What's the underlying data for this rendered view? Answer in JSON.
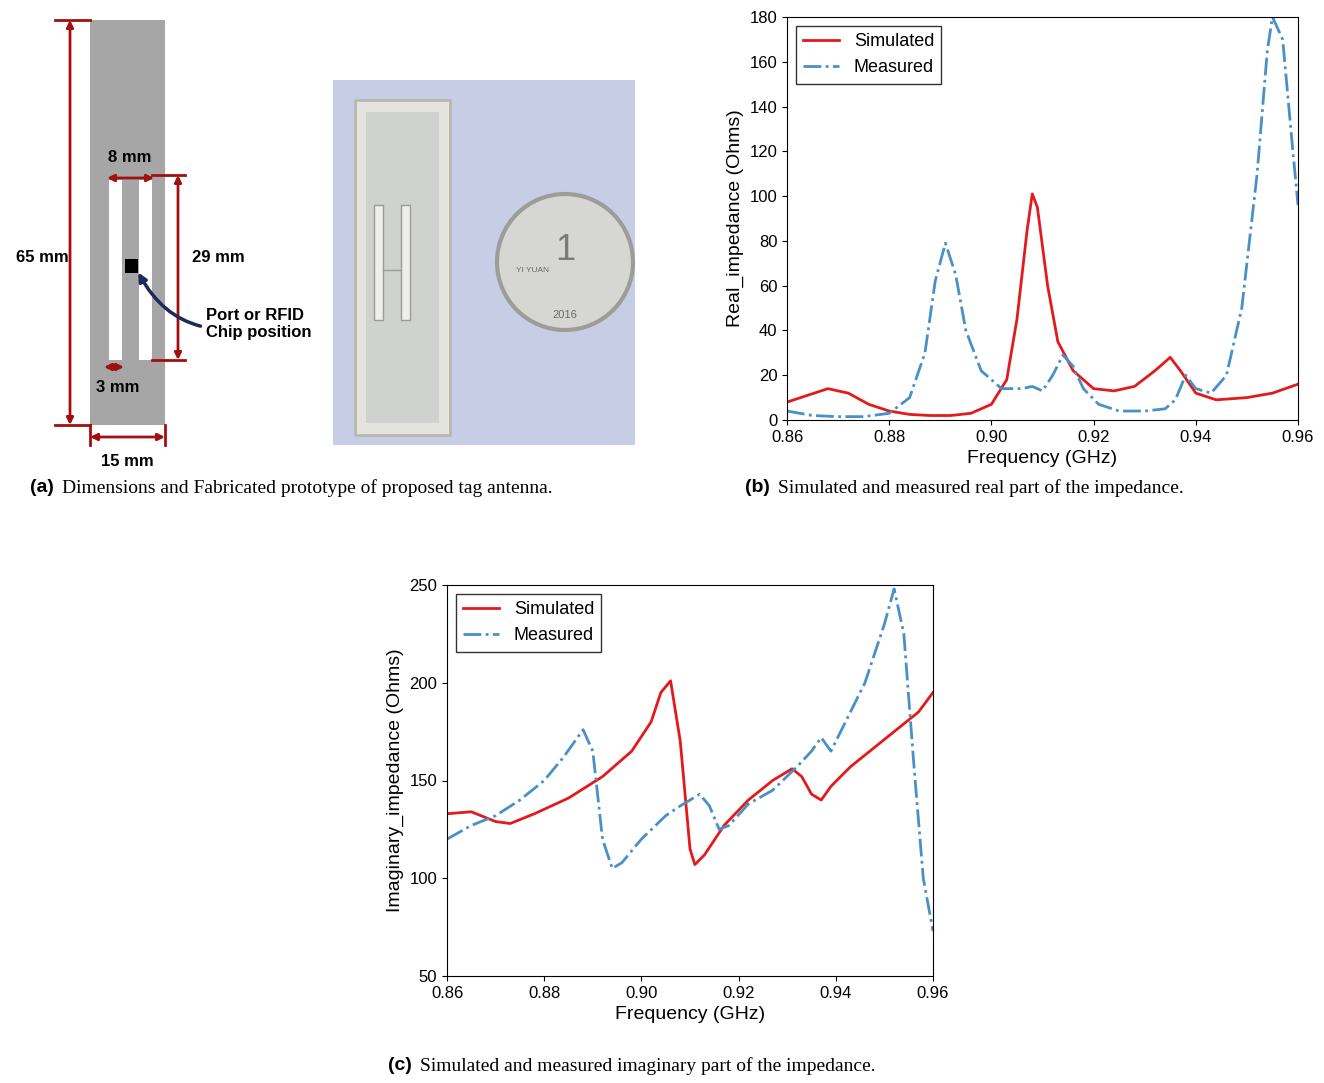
{
  "figure": {
    "panel_a": {
      "caption_label": "(a)",
      "caption": "Dimensions and Fabricated prototype of proposed tag antenna.",
      "height": "65 mm",
      "slot_span": "8 mm",
      "slot_length": "29 mm",
      "slot_width": "3 mm",
      "width": "15 mm",
      "port_label": "Port or RFID\nChip position",
      "coin_texts": [
        "1",
        "YI YUAN",
        "2016"
      ]
    }
  },
  "chart_data": [
    {
      "type": "line",
      "caption_label": "(b)",
      "caption": "Simulated and measured real part of the impedance.",
      "x_label": "Frequency (GHz)",
      "y_label": "Real_impedance (Ohms)",
      "xlim": [
        0.86,
        0.96
      ],
      "ylim": [
        0,
        180
      ],
      "xticks": [
        0.86,
        0.88,
        {
          "value": 0.9,
          "label": "0.90"
        },
        0.92,
        0.94,
        0.96
      ],
      "yticks": [
        0,
        20,
        40,
        60,
        80,
        100,
        120,
        140,
        160,
        180
      ],
      "legend": "upper left",
      "series": [
        {
          "name": "Simulated",
          "color": "#e31a1c",
          "line_style": "solid",
          "x": [
            0.86,
            0.864,
            0.868,
            0.872,
            0.876,
            0.88,
            0.884,
            0.888,
            0.892,
            0.896,
            0.9,
            0.903,
            0.905,
            0.907,
            0.908,
            0.909,
            0.911,
            0.913,
            0.916,
            0.92,
            0.924,
            0.928,
            0.932,
            0.935,
            0.937,
            0.94,
            0.944,
            0.95,
            0.955,
            0.96
          ],
          "values": [
            8,
            11,
            14,
            12,
            7,
            4,
            2.5,
            2,
            2,
            3,
            7,
            18,
            45,
            85,
            101,
            95,
            60,
            35,
            22,
            14,
            13,
            15,
            22,
            28,
            22,
            12,
            9,
            10,
            12,
            16
          ]
        },
        {
          "name": "Measured",
          "color": "#4a90c8",
          "line_style": "dashdot",
          "x": [
            0.86,
            0.865,
            0.87,
            0.875,
            0.88,
            0.884,
            0.887,
            0.889,
            0.891,
            0.893,
            0.895,
            0.898,
            0.902,
            0.906,
            0.908,
            0.91,
            0.912,
            0.914,
            0.916,
            0.918,
            0.921,
            0.925,
            0.93,
            0.934,
            0.936,
            0.938,
            0.94,
            0.943,
            0.946,
            0.949,
            0.952,
            0.954,
            0.955,
            0.957,
            0.959,
            0.96
          ],
          "values": [
            4,
            2,
            1.5,
            1.5,
            3,
            10,
            30,
            62,
            79,
            65,
            40,
            22,
            14,
            14,
            15,
            13,
            20,
            29,
            24,
            14,
            7,
            4,
            4,
            5,
            9,
            20,
            14,
            12,
            20,
            50,
            110,
            165,
            180,
            170,
            120,
            96
          ]
        }
      ]
    },
    {
      "type": "line",
      "caption_label": "(c)",
      "caption": "Simulated and measured imaginary part of the impedance.",
      "x_label": "Frequency (GHz)",
      "y_label": "Imaginary_impedance (Ohms)",
      "xlim": [
        0.86,
        0.96
      ],
      "ylim": [
        50,
        250
      ],
      "xticks": [
        0.86,
        0.88,
        {
          "value": 0.9,
          "label": "0.90"
        },
        0.92,
        0.94,
        0.96
      ],
      "yticks": [
        50,
        100,
        150,
        200,
        250
      ],
      "legend": "upper left",
      "series": [
        {
          "name": "Simulated",
          "color": "#e31a1c",
          "line_style": "solid",
          "x": [
            0.86,
            0.865,
            0.87,
            0.873,
            0.878,
            0.885,
            0.892,
            0.898,
            0.902,
            0.904,
            0.906,
            0.908,
            0.91,
            0.911,
            0.913,
            0.917,
            0.922,
            0.927,
            0.931,
            0.933,
            0.935,
            0.937,
            0.939,
            0.943,
            0.948,
            0.953,
            0.957,
            0.96
          ],
          "values": [
            133,
            134,
            129,
            128,
            133,
            141,
            152,
            165,
            180,
            195,
            201,
            170,
            115,
            107,
            112,
            127,
            140,
            150,
            156,
            152,
            143,
            140,
            147,
            157,
            167,
            177,
            185,
            195
          ]
        },
        {
          "name": "Measured",
          "color": "#4a90c8",
          "line_style": "dashdot",
          "x": [
            0.86,
            0.865,
            0.87,
            0.875,
            0.88,
            0.884,
            0.888,
            0.89,
            0.892,
            0.894,
            0.896,
            0.9,
            0.905,
            0.908,
            0.91,
            0.912,
            0.914,
            0.916,
            0.918,
            0.922,
            0.927,
            0.932,
            0.935,
            0.937,
            0.939,
            0.942,
            0.946,
            0.95,
            0.952,
            0.954,
            0.956,
            0.958,
            0.96
          ],
          "values": [
            120,
            127,
            132,
            140,
            150,
            162,
            176,
            165,
            120,
            105,
            108,
            120,
            132,
            137,
            140,
            143,
            137,
            125,
            127,
            138,
            145,
            157,
            165,
            172,
            165,
            180,
            200,
            230,
            248,
            225,
            160,
            100,
            73
          ]
        }
      ]
    }
  ]
}
